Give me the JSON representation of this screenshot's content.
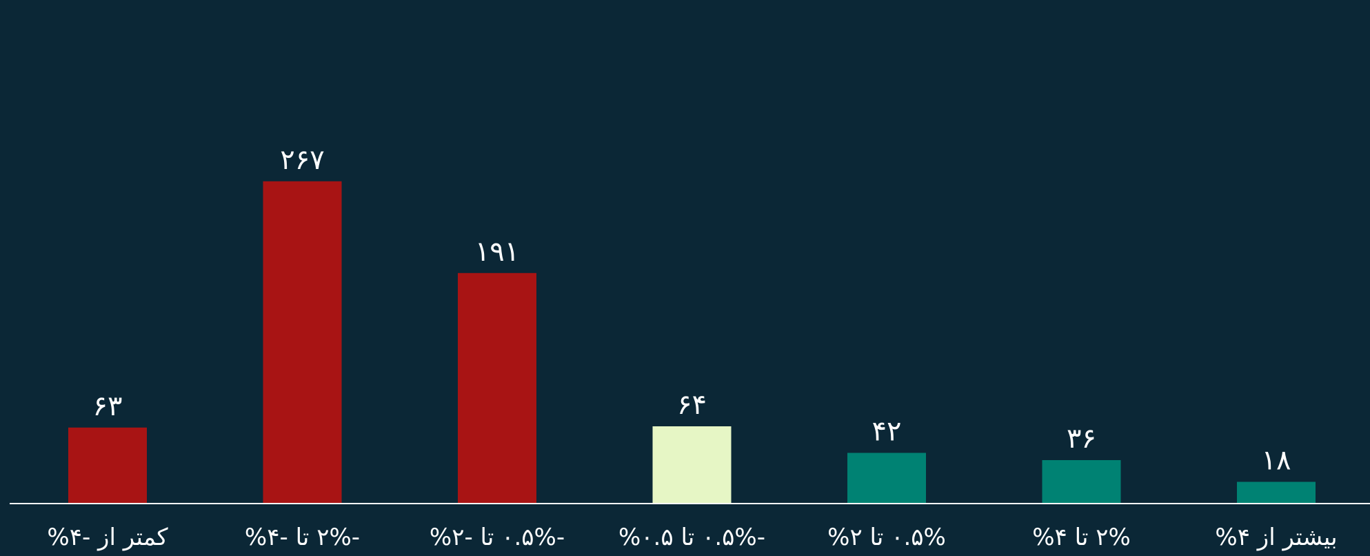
{
  "chart_data": {
    "type": "bar",
    "title": "",
    "xlabel": "",
    "ylabel": "",
    "categories": [
      "کمتر از -۴%",
      "-۲% تا -۴%",
      "-۰.۵% تا -۲%",
      "-۰.۵% تا ۰.۵%",
      "۰.۵% تا ۲%",
      "۲% تا ۴%",
      "بیشتر از ۴%"
    ],
    "values": [
      63,
      267,
      191,
      64,
      42,
      36,
      18
    ],
    "value_labels": [
      "۶۳",
      "۲۶۷",
      "۱۹۱",
      "۶۴",
      "۴۲",
      "۳۶",
      "۱۸"
    ],
    "ylim": [
      0,
      300
    ],
    "grid": false,
    "legend": "none",
    "colors": {
      "background": "#0b2736",
      "negative": "#a81414",
      "neutral": "#e6f6c5",
      "positive": "#008273",
      "axis": "#ffffff",
      "text": "#ffffff"
    },
    "bar_colors": [
      "#a81414",
      "#a81414",
      "#a81414",
      "#e6f6c5",
      "#008273",
      "#008273",
      "#008273"
    ]
  }
}
